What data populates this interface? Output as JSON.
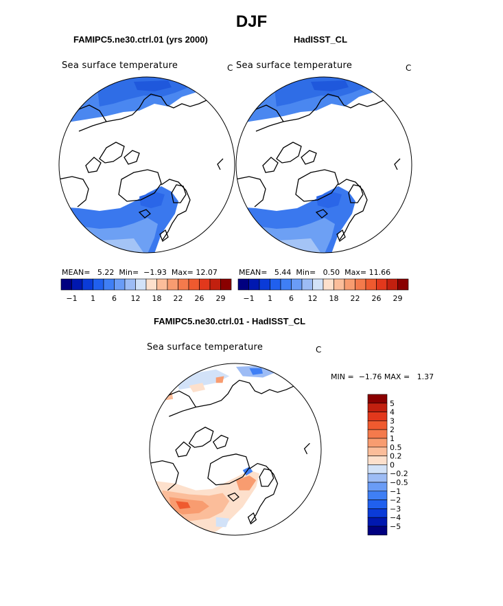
{
  "season_title": "DJF",
  "colors": {
    "coast": "#000000",
    "seq_scale": [
      "#000080",
      "#0018b0",
      "#0a3bd8",
      "#2060ee",
      "#3f7ff5",
      "#6a9cf6",
      "#9dbcf5",
      "#d2e2f8",
      "#fde0cc",
      "#fbbd9a",
      "#f89c70",
      "#f47a4c",
      "#ef5a2f",
      "#e2381c",
      "#c2200f",
      "#8a0000"
    ],
    "diff_scale": [
      "#000080",
      "#0018b0",
      "#0a3bd8",
      "#2060ee",
      "#3f7ff5",
      "#6a9cf6",
      "#9dbcf5",
      "#d2e2f8",
      "#fde0cc",
      "#fbbd9a",
      "#f89c70",
      "#f47a4c",
      "#ef5a2f",
      "#e2381c",
      "#c2200f",
      "#8a0000"
    ]
  },
  "panels": [
    {
      "title": "FAMIPC5.ne30.ctrl.01 (yrs 2000)",
      "field_label": "Sea surface temperature",
      "unit": "C",
      "stats": {
        "mean_label": "MEAN=",
        "mean": "5.22",
        "min_label": "Min=",
        "min": "−1.93",
        "max_label": "Max=",
        "max": "12.07"
      }
    },
    {
      "title": "HadISST_CL",
      "field_label": "Sea surface temperature",
      "unit": "C",
      "stats": {
        "mean_label": "MEAN=",
        "mean": "5.44",
        "min_label": "Min=",
        "min": "0.50",
        "max_label": "Max=",
        "max": "11.66"
      }
    },
    {
      "title": "FAMIPC5.ne30.ctrl.01 - HadISST_CL",
      "field_label": "Sea surface temperature",
      "unit": "C",
      "stats": {
        "min_label": "MIN =",
        "min": "−1.76",
        "max_label": "MAX =",
        "max": "1.37"
      }
    }
  ],
  "colorbar_ticks": [
    "−1",
    "1",
    "6",
    "12",
    "18",
    "22",
    "26",
    "29"
  ],
  "diff_colorbar_ticks": [
    "5",
    "4",
    "3",
    "2",
    "1",
    "0.5",
    "0.2",
    "0",
    "−0.2",
    "−0.5",
    "−1",
    "−2",
    "−3",
    "−4",
    "−5"
  ]
}
